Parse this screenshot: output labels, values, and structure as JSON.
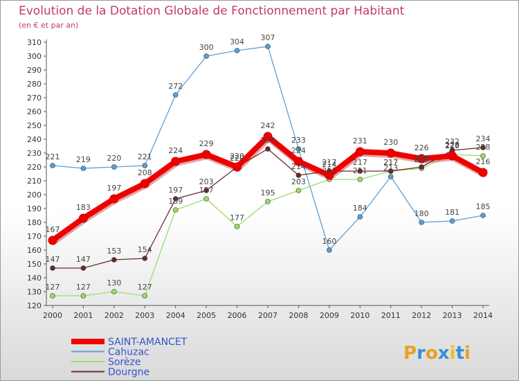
{
  "chart_data": {
    "type": "line",
    "title": "Evolution de la Dotation Globale de Fonctionnement par Habitant",
    "subtitle": "(en € et par an)",
    "x": [
      "2000",
      "2001",
      "2002",
      "2003",
      "2004",
      "2005",
      "2006",
      "2007",
      "2008",
      "2009",
      "2010",
      "2011",
      "2012",
      "2013",
      "2014"
    ],
    "ylim": [
      120,
      310
    ],
    "yticks": [
      120,
      130,
      140,
      150,
      160,
      170,
      180,
      190,
      200,
      210,
      220,
      230,
      240,
      250,
      260,
      270,
      280,
      290,
      300,
      310
    ],
    "grid": false,
    "legend_position": "bottom-left",
    "series": [
      {
        "name": "SAINT-AMANCET",
        "color": "#ee0000",
        "values": [
          167,
          183,
          197,
          208,
          224,
          229,
          220,
          242,
          224,
          214,
          231,
          230,
          226,
          228,
          216
        ]
      },
      {
        "name": "Cahuzac",
        "color": "#5c9fd6",
        "values": [
          221,
          219,
          220,
          221,
          272,
          300,
          304,
          307,
          233,
          160,
          184,
          213,
          180,
          181,
          185
        ]
      },
      {
        "name": "Sorèze",
        "color": "#99dd66",
        "values": [
          127,
          127,
          130,
          127,
          189,
          197,
          177,
          195,
          203,
          211,
          211,
          217,
          219,
          229,
          228
        ]
      },
      {
        "name": "Dourgne",
        "color": "#6b2a2a",
        "values": [
          147,
          147,
          153,
          154,
          197,
          203,
          220,
          233,
          214,
          217,
          217,
          217,
          220,
          232,
          234
        ]
      }
    ]
  },
  "brand": {
    "letters": [
      "P",
      "r",
      "o",
      "x",
      "i",
      "t",
      "i"
    ],
    "colors": [
      "#e8a020",
      "#3a8fd0",
      "#e8a020",
      "#3a8fd0",
      "#e8c020",
      "#3a8fd0",
      "#e8a020"
    ]
  }
}
